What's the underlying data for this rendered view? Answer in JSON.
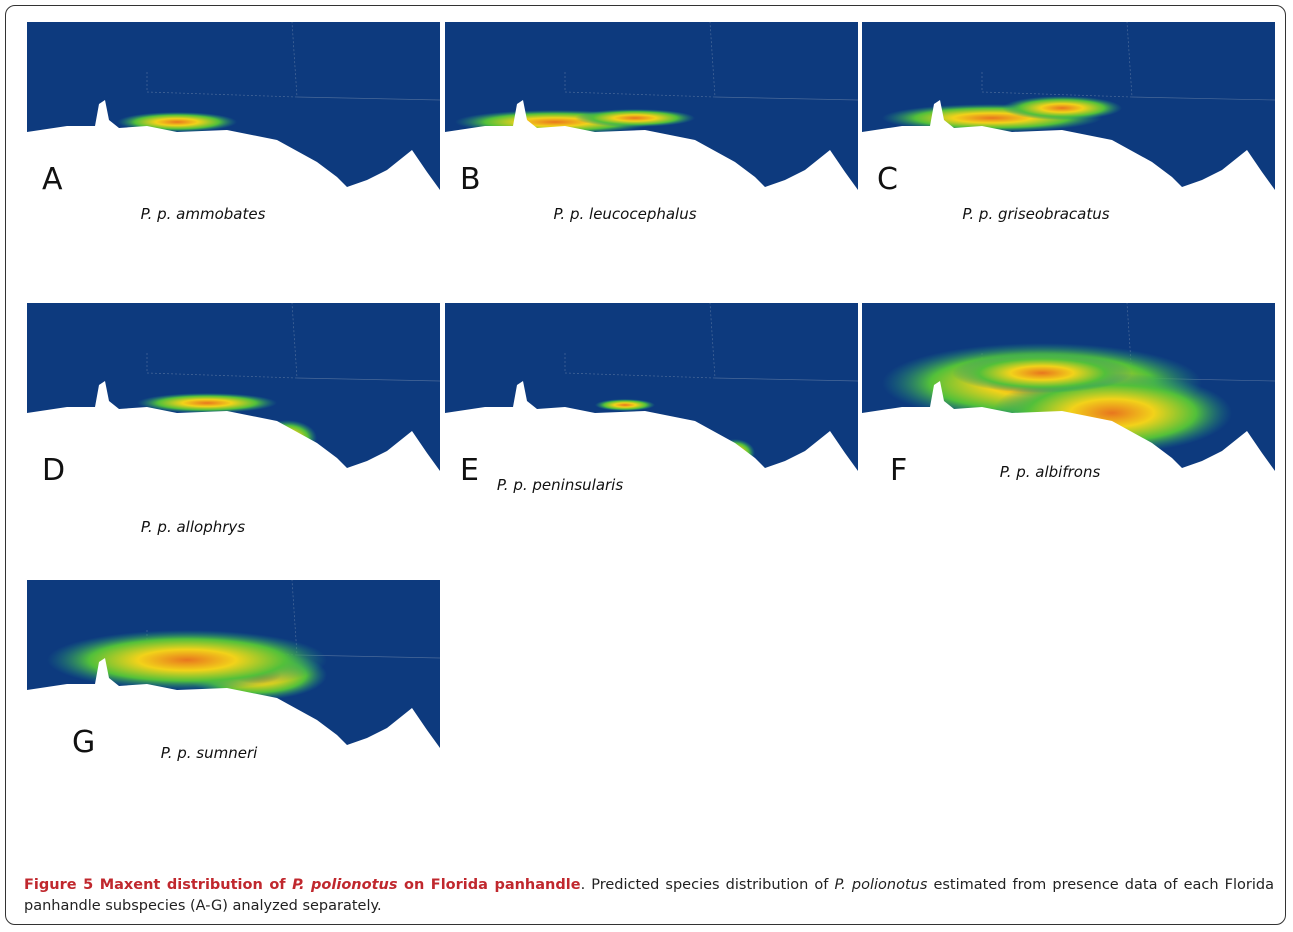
{
  "figure": {
    "panels": [
      {
        "letter": "A",
        "label": "P. p. ammobates"
      },
      {
        "letter": "B",
        "label": "P. p. leucocephalus"
      },
      {
        "letter": "C",
        "label": "P. p. griseobracatus"
      },
      {
        "letter": "D",
        "label": "P. p. allophrys"
      },
      {
        "letter": "E",
        "label": "P. p. peninsularis"
      },
      {
        "letter": "F",
        "label": "P. p. albifrons"
      },
      {
        "letter": "G",
        "label": "P. p. sumneri"
      }
    ],
    "caption": [
      {
        "text": "Figure 5 Maxent distribution of ",
        "style": "bold"
      },
      {
        "text": "P. polionotus",
        "style": "bold-italic"
      },
      {
        "text": " on Florida panhandle",
        "style": "bold"
      },
      {
        "text": ". Predicted species distribution of ",
        "style": "normal"
      },
      {
        "text": "P. polionotus",
        "style": "italic"
      },
      {
        "text": " estimated from presence data of each Florida panhandle subspecies (A-G) analyzed separately.",
        "style": "normal"
      }
    ]
  }
}
